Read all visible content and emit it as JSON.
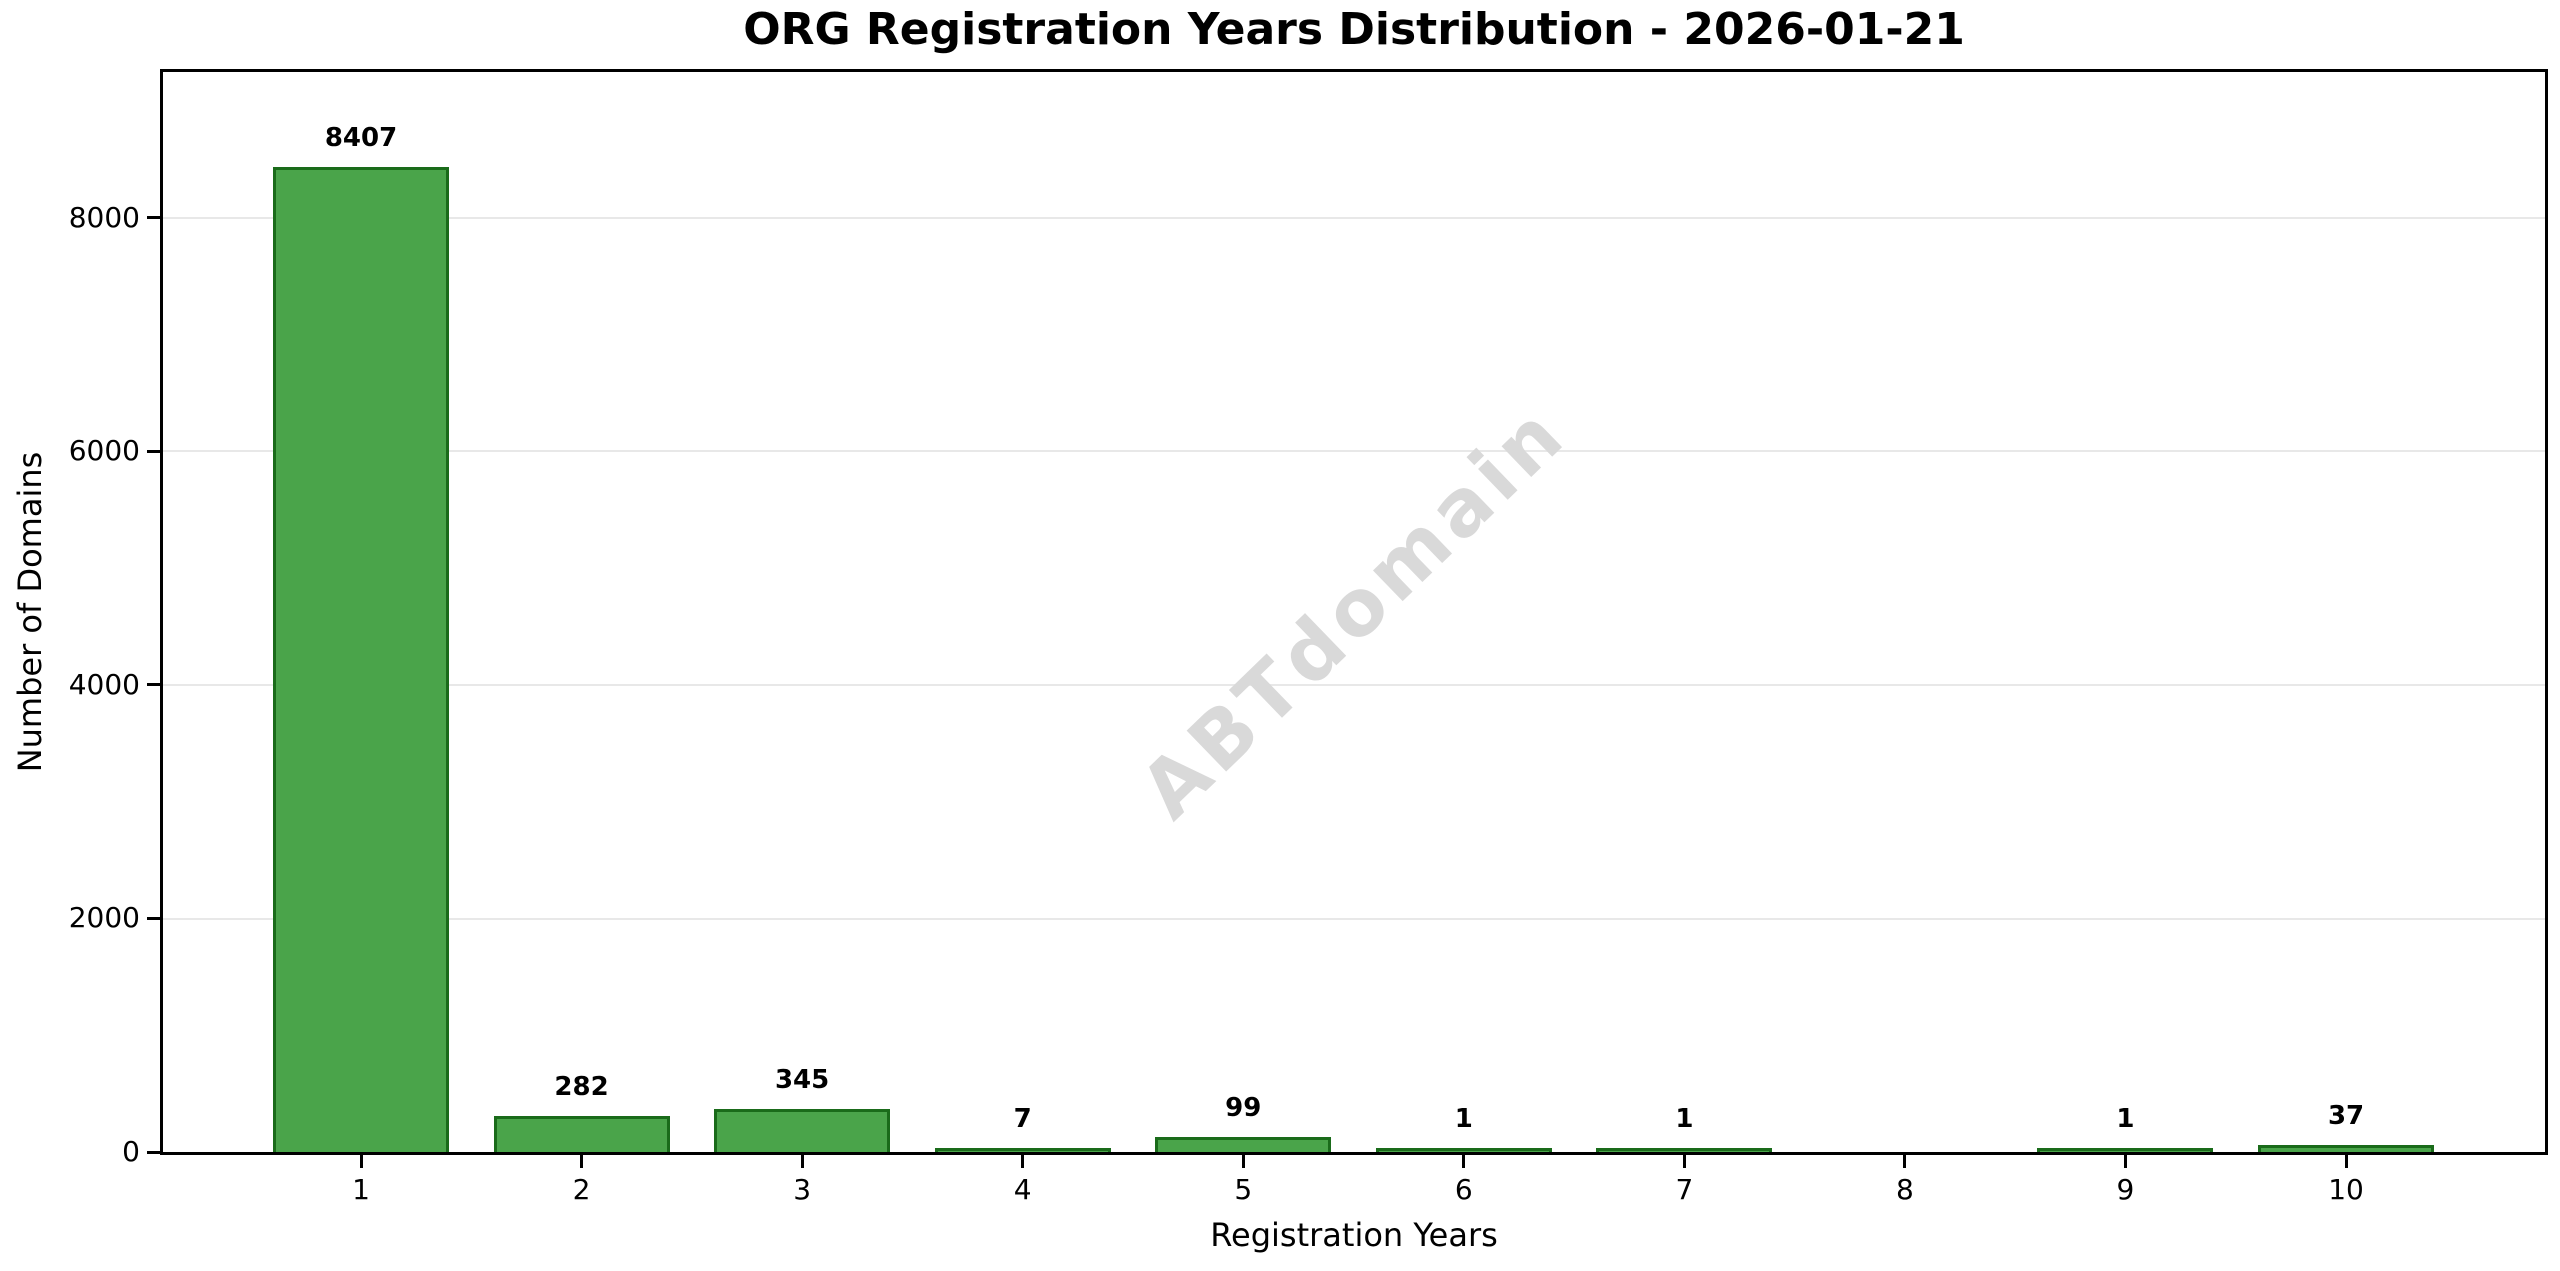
{
  "page": {
    "background_color": "#ffffff"
  },
  "chart_data": {
    "type": "bar",
    "title": "ORG Registration Years Distribution - 2026-01-21",
    "xlabel": "Registration Years",
    "ylabel": "Number of Domains",
    "categories": [
      "1",
      "2",
      "3",
      "4",
      "5",
      "6",
      "7",
      "8",
      "9",
      "10"
    ],
    "values": [
      8407,
      282,
      345,
      7,
      99,
      1,
      1,
      0,
      1,
      37
    ],
    "bar_labels": [
      "8407",
      "282",
      "345",
      "7",
      "99",
      "1",
      "1",
      "",
      "1",
      "37"
    ],
    "y_ticks": [
      0,
      2000,
      4000,
      6000,
      8000
    ],
    "ylim": [
      0,
      9250
    ],
    "grid": "horizontal-only",
    "legend": "none",
    "watermark": "ABTdomain",
    "colors": {
      "bar_fill": "#4aa44a",
      "bar_edge": "#1a6b1a",
      "grid": "#e8e8e8",
      "spine": "#000000",
      "text": "#000000",
      "watermark": "#d9d9d9",
      "background": "#ffffff"
    }
  }
}
